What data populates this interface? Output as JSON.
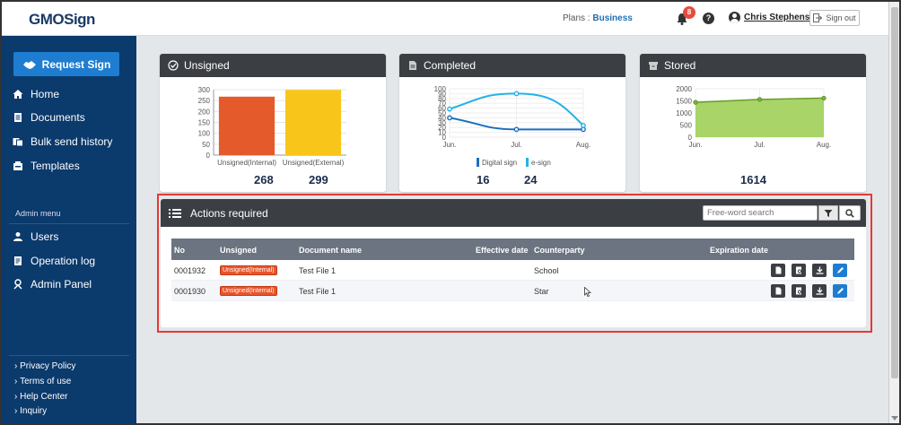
{
  "header": {
    "logo": "GMOSign",
    "plans_label": "Plans : ",
    "plans_value": "Business",
    "notification_count": "8",
    "help_label": "?",
    "user_name": "Chris Stephens",
    "signout_label": "Sign out"
  },
  "sidebar": {
    "request_button": "Request Sign",
    "items": [
      {
        "label": "Home",
        "icon": "home-icon"
      },
      {
        "label": "Documents",
        "icon": "documents-icon"
      },
      {
        "label": "Bulk send history",
        "icon": "bulk-send-icon"
      },
      {
        "label": "Templates",
        "icon": "templates-icon"
      }
    ],
    "admin_title": "Admin menu",
    "admin_items": [
      {
        "label": "Users",
        "icon": "user-icon"
      },
      {
        "label": "Operation log",
        "icon": "log-icon"
      },
      {
        "label": "Admin Panel",
        "icon": "admin-icon"
      }
    ],
    "footer_links": [
      "Privacy Policy",
      "Terms of use",
      "Help Center",
      "Inquiry"
    ]
  },
  "cards": {
    "unsigned": {
      "title": "Unsigned",
      "internal_count": "268",
      "external_count": "299"
    },
    "completed": {
      "title": "Completed",
      "digital_count": "16",
      "esign_count": "24"
    },
    "stored": {
      "title": "Stored",
      "count": "1614"
    }
  },
  "chart_data": [
    {
      "type": "bar",
      "categories": [
        "Unsigned(Internal)",
        "Unsigned(External)"
      ],
      "values": [
        268,
        299
      ],
      "ylim": [
        0,
        300
      ],
      "yticks": [
        "0",
        "50",
        "100",
        "150",
        "200",
        "250",
        "300"
      ],
      "colors": [
        "#e55a2b",
        "#f8c61b"
      ]
    },
    {
      "type": "line",
      "categories": [
        "Jun.",
        "Jul.",
        "Aug."
      ],
      "series": [
        {
          "name": "Digital sign",
          "values": [
            40,
            16,
            16
          ],
          "color": "#1b6fbe"
        },
        {
          "name": "e-sign",
          "values": [
            58,
            90,
            24
          ],
          "color": "#22b2e8"
        }
      ],
      "ylim": [
        0,
        100
      ],
      "yticks": [
        "0",
        "10",
        "20",
        "30",
        "40",
        "50",
        "60",
        "70",
        "80",
        "90",
        "100"
      ]
    },
    {
      "type": "area",
      "categories": [
        "Jun.",
        "Jul.",
        "Aug."
      ],
      "values": [
        1440,
        1560,
        1614
      ],
      "ylim": [
        0,
        2000
      ],
      "yticks": [
        "0",
        "500",
        "1000",
        "1500",
        "2000"
      ],
      "color": "#8dc63f"
    }
  ],
  "actions": {
    "title": "Actions required",
    "search_placeholder": "Free-word search",
    "columns": [
      "No",
      "Unsigned",
      "Document name",
      "Effective date",
      "Counterparty",
      "Expiration date"
    ],
    "rows": [
      {
        "no": "0001932",
        "status": "Unsigned(Internal)",
        "doc": "Test File 1",
        "effective": "",
        "counterparty": "School",
        "expiration": ""
      },
      {
        "no": "0001930",
        "status": "Unsigned(Internal)",
        "doc": "Test File 1",
        "effective": "",
        "counterparty": "Star",
        "expiration": ""
      }
    ]
  }
}
